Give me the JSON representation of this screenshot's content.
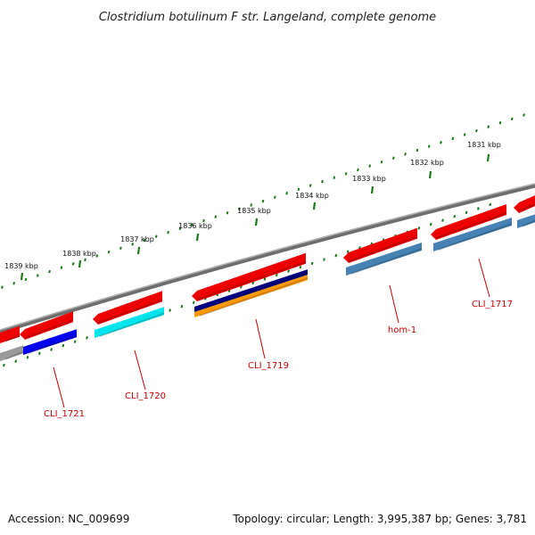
{
  "title": "Clostridium botulinum F str. Langeland, complete genome",
  "footer": {
    "accession": "Accession: NC_009699",
    "topology": "Topology: circular; Length: 3,995,387 bp; Genes: 3,781"
  },
  "kbp_labels": [
    "1839 kbp",
    "1838 kbp",
    "1837 kbp",
    "1836 kbp",
    "1835 kbp",
    "1834 kbp",
    "1833 kbp",
    "1832 kbp",
    "1831 kbp"
  ],
  "gene_labels": [
    "CLI_1721",
    "CLI_1720",
    "CLI_1719",
    "hom-1",
    "CLI_1717"
  ],
  "colors": {
    "backbone": "#808080",
    "tick_green": "#1a7a1a",
    "gene_red": "#ee0000",
    "label_red": "#cc0000",
    "navy": "#000080",
    "blue": "#0000ee",
    "cyan": "#00e5ee",
    "orange": "#ff9900",
    "steel": "#4682b4",
    "grey": "#9a9a9a"
  }
}
